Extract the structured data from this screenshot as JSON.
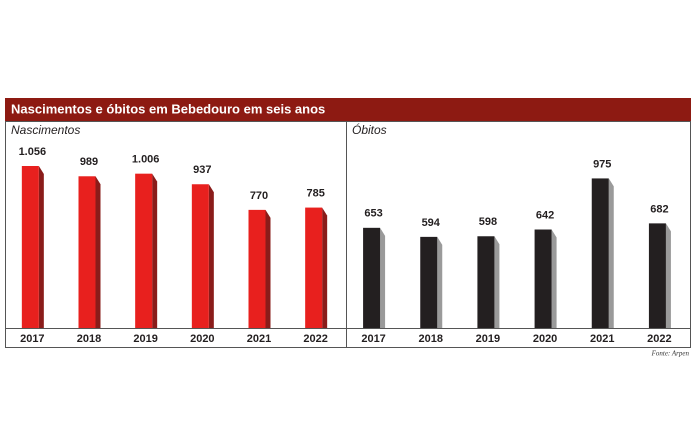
{
  "header": {
    "title": "Nascimentos e óbitos em Bebedouro em seis anos"
  },
  "source": "Fonte: Arpen",
  "chart_data": [
    {
      "type": "bar",
      "title": "Nascimentos",
      "color": "#e8201e",
      "side_color": "#8a1c1a",
      "categories": [
        "2017",
        "2018",
        "2019",
        "2020",
        "2021",
        "2022"
      ],
      "values": [
        1056,
        989,
        1006,
        937,
        770,
        785
      ],
      "value_labels": [
        "1.056",
        "989",
        "1.006",
        "937",
        "770",
        "785"
      ]
    },
    {
      "type": "bar",
      "title": "Óbitos",
      "color": "#231f20",
      "side_color": "#9a9a9a",
      "categories": [
        "2017",
        "2018",
        "2019",
        "2020",
        "2021",
        "2022"
      ],
      "values": [
        653,
        594,
        598,
        642,
        975,
        682
      ],
      "value_labels": [
        "653",
        "594",
        "598",
        "642",
        "975",
        "682"
      ]
    }
  ]
}
